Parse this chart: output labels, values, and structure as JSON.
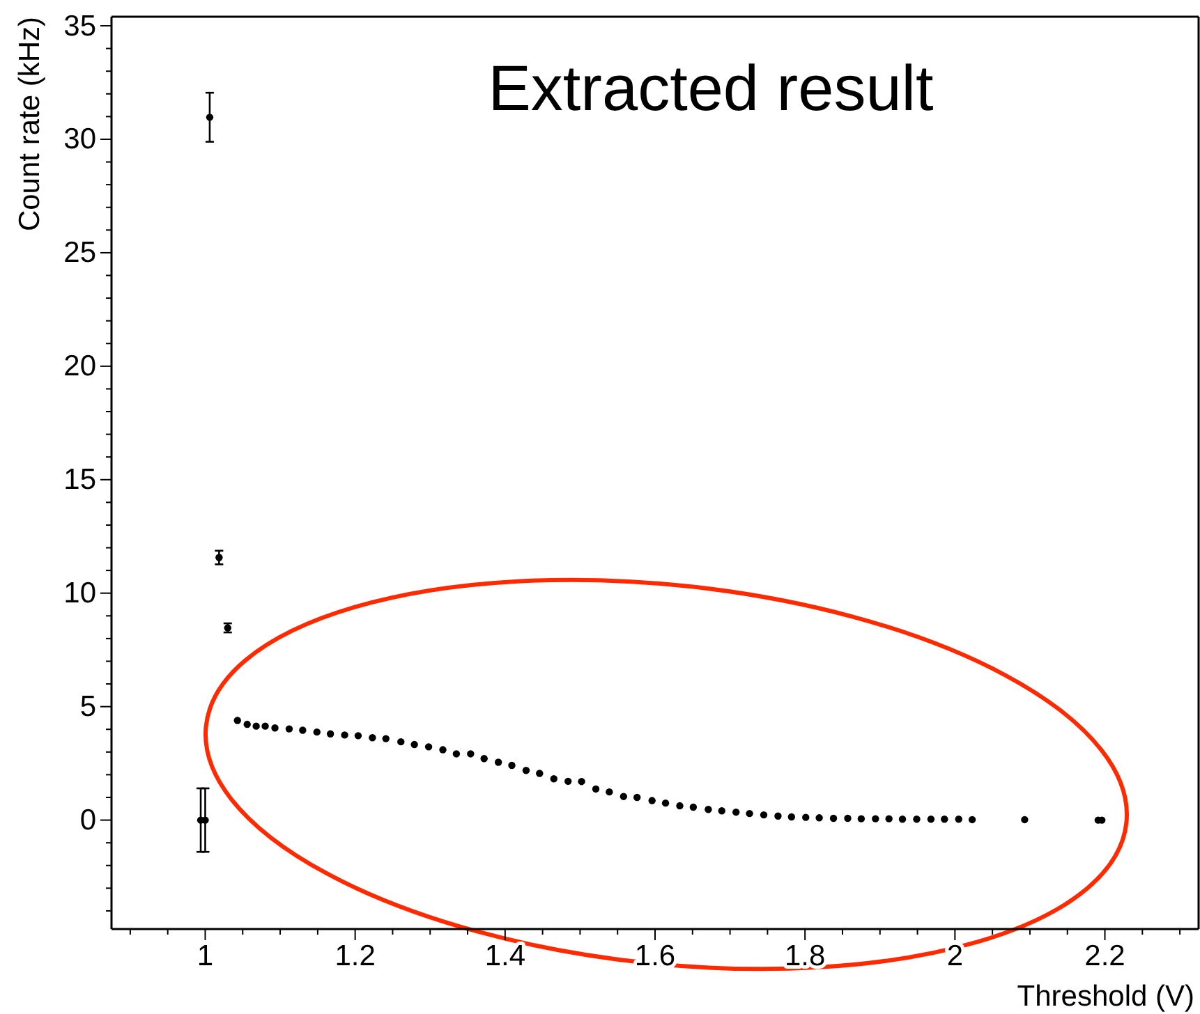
{
  "chart_data": {
    "type": "scatter",
    "title": "Extracted result",
    "xlabel": "Threshold (V)",
    "ylabel": "Count rate (kHz)",
    "xlim": [
      0.875,
      2.325
    ],
    "ylim": [
      -4.8,
      35.4
    ],
    "xticks": [
      {
        "value": 0.9,
        "label": null
      },
      {
        "value": 0.95,
        "label": null
      },
      {
        "value": 1,
        "label": "1"
      },
      {
        "value": 1.05,
        "label": null
      },
      {
        "value": 1.1,
        "label": null
      },
      {
        "value": 1.15,
        "label": null
      },
      {
        "value": 1.2,
        "label": "1.2"
      },
      {
        "value": 1.25,
        "label": null
      },
      {
        "value": 1.3,
        "label": null
      },
      {
        "value": 1.35,
        "label": null
      },
      {
        "value": 1.4,
        "label": "1.4"
      },
      {
        "value": 1.45,
        "label": null
      },
      {
        "value": 1.5,
        "label": null
      },
      {
        "value": 1.55,
        "label": null
      },
      {
        "value": 1.6,
        "label": "1.6"
      },
      {
        "value": 1.65,
        "label": null
      },
      {
        "value": 1.7,
        "label": null
      },
      {
        "value": 1.75,
        "label": null
      },
      {
        "value": 1.8,
        "label": "1.8"
      },
      {
        "value": 1.85,
        "label": null
      },
      {
        "value": 1.9,
        "label": null
      },
      {
        "value": 1.95,
        "label": null
      },
      {
        "value": 2,
        "label": "2"
      },
      {
        "value": 2.05,
        "label": null
      },
      {
        "value": 2.1,
        "label": null
      },
      {
        "value": 2.15,
        "label": null
      },
      {
        "value": 2.2,
        "label": "2.2"
      },
      {
        "value": 2.25,
        "label": null
      },
      {
        "value": 2.3,
        "label": null
      }
    ],
    "yticks": [
      {
        "value": -4,
        "label": null
      },
      {
        "value": -3,
        "label": null
      },
      {
        "value": -2,
        "label": null
      },
      {
        "value": -1,
        "label": null
      },
      0,
      {
        "value": 1,
        "label": null
      },
      {
        "value": 2,
        "label": null
      },
      {
        "value": 3,
        "label": null
      },
      {
        "value": 4,
        "label": null
      },
      5,
      {
        "value": 6,
        "label": null
      },
      {
        "value": 7,
        "label": null
      },
      {
        "value": 8,
        "label": null
      },
      {
        "value": 9,
        "label": null
      },
      10,
      {
        "value": 11,
        "label": null
      },
      {
        "value": 12,
        "label": null
      },
      {
        "value": 13,
        "label": null
      },
      {
        "value": 14,
        "label": null
      },
      15,
      {
        "value": 16,
        "label": null
      },
      {
        "value": 17,
        "label": null
      },
      {
        "value": 18,
        "label": null
      },
      {
        "value": 19,
        "label": null
      },
      20,
      {
        "value": 21,
        "label": null
      },
      {
        "value": 22,
        "label": null
      },
      {
        "value": 23,
        "label": null
      },
      {
        "value": 24,
        "label": null
      },
      25,
      {
        "value": 26,
        "label": null
      },
      {
        "value": 27,
        "label": null
      },
      {
        "value": 28,
        "label": null
      },
      {
        "value": 29,
        "label": null
      },
      30,
      {
        "value": 31,
        "label": null
      },
      {
        "value": 32,
        "label": null
      },
      {
        "value": 33,
        "label": null
      },
      {
        "value": 34,
        "label": null
      },
      35
    ],
    "grid": false,
    "marker": "circle",
    "series": [
      {
        "color": "#000000",
        "x": [
          0.994,
          1.0,
          1.006,
          1.0185,
          1.03,
          1.043,
          1.056,
          1.068,
          1.08,
          1.093,
          1.112,
          1.13,
          1.149,
          1.167,
          1.186,
          1.204,
          1.223,
          1.241,
          1.261,
          1.279,
          1.298,
          1.317,
          1.335,
          1.354,
          1.372,
          1.391,
          1.409,
          1.428,
          1.446,
          1.465,
          1.484,
          1.502,
          1.521,
          1.539,
          1.558,
          1.576,
          1.596,
          1.614,
          1.633,
          1.651,
          1.671,
          1.689,
          1.708,
          1.726,
          1.745,
          1.764,
          1.782,
          1.801,
          1.819,
          1.838,
          1.857,
          1.875,
          1.894,
          1.912,
          1.93,
          1.949,
          1.968,
          1.986,
          2.005,
          2.023,
          2.093,
          2.191,
          2.196
        ],
        "values": [
          0,
          0,
          30.97,
          11.57,
          8.47,
          4.39,
          4.22,
          4.14,
          4.14,
          4.06,
          4.02,
          3.96,
          3.88,
          3.8,
          3.75,
          3.72,
          3.63,
          3.59,
          3.45,
          3.33,
          3.23,
          3.1,
          2.92,
          2.92,
          2.71,
          2.55,
          2.41,
          2.19,
          2.06,
          1.82,
          1.71,
          1.7,
          1.37,
          1.24,
          1.04,
          1.0,
          0.86,
          0.75,
          0.63,
          0.57,
          0.47,
          0.41,
          0.35,
          0.29,
          0.23,
          0.18,
          0.14,
          0.12,
          0.1,
          0.08,
          0.08,
          0.06,
          0.06,
          0.06,
          0.04,
          0.04,
          0.04,
          0.04,
          0.04,
          0.02,
          0.02,
          0,
          0
        ],
        "errors": [
          1.4,
          1.4,
          1.08,
          0.3,
          0.2,
          null,
          null,
          null,
          null,
          null,
          null,
          null,
          null,
          null,
          null,
          null,
          null,
          null,
          null,
          null,
          null,
          null,
          null,
          null,
          null,
          null,
          null,
          null,
          null,
          null,
          null,
          null,
          null,
          null,
          null,
          null,
          null,
          null,
          null,
          null,
          null,
          null,
          null,
          null,
          null,
          null,
          null,
          null,
          null,
          null,
          null,
          null,
          null,
          null,
          null,
          null,
          null,
          null,
          null,
          null,
          null,
          null,
          null
        ]
      }
    ]
  }
}
